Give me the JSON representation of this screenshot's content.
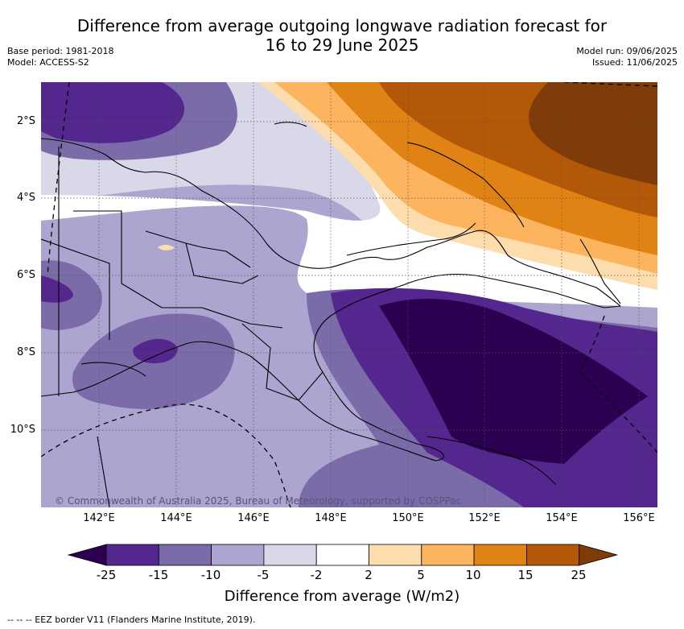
{
  "title": {
    "line1": "Difference from average outgoing longwave radiation forecast for",
    "line2": "16 to 29 June 2025"
  },
  "meta": {
    "base_period": "Base period: 1981-2018",
    "model": "Model: ACCESS-S2",
    "model_run": "Model run: 09/06/2025",
    "issued": "Issued: 11/06/2025"
  },
  "map": {
    "copyright": "© Commonwealth of Australia 2025, Bureau of Meteorology, supported by COSPPac",
    "x_ticks": [
      "142°E",
      "144°E",
      "146°E",
      "148°E",
      "150°E",
      "152°E",
      "154°E",
      "156°E"
    ],
    "y_ticks": [
      "2°S",
      "4°S",
      "6°S",
      "8°S",
      "10°S"
    ],
    "colors": {
      "very_strong_neg": "#2c0050",
      "strong_neg": "#54278f",
      "mod_neg": "#7b6ca9",
      "weak_neg": "#aba5cf",
      "slight_neg": "#d8d8e9",
      "neutral": "#ffffff",
      "slight_pos": "#fddcae",
      "weak_pos": "#fdb45f",
      "mod_pos": "#e08214",
      "strong_pos": "#b35806",
      "very_strong_pos": "#7f3b08"
    }
  },
  "colorbar": {
    "labels": [
      "-25",
      "-15",
      "-10",
      "-5",
      "-2",
      "2",
      "5",
      "10",
      "15",
      "25"
    ],
    "colors": [
      "#2c0050",
      "#54278f",
      "#7b6ca9",
      "#aba5cf",
      "#d8d8e9",
      "#ffffff",
      "#fddcae",
      "#fdb45f",
      "#e08214",
      "#b35806",
      "#7f3b08"
    ],
    "title": "Difference from average (W/m2)"
  },
  "footer": "--  --  -- EEZ border V11 (Flanders Marine Institute, 2019)."
}
